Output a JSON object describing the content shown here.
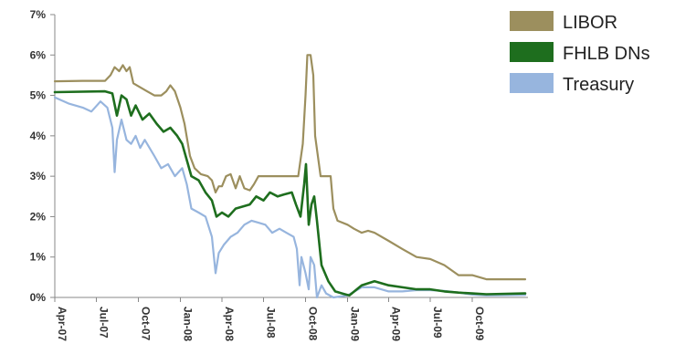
{
  "chart_data": {
    "type": "line",
    "title": "",
    "xlabel": "",
    "ylabel": "",
    "ylim": [
      0,
      7
    ],
    "xlim": [
      "2007-04-01",
      "2010-01-31"
    ],
    "y_ticks": [
      "0%",
      "1%",
      "2%",
      "3%",
      "4%",
      "5%",
      "6%",
      "7%"
    ],
    "x_ticks": [
      {
        "label": "Apr-07",
        "date": "2007-04-01"
      },
      {
        "label": "Jul-07",
        "date": "2007-07-01"
      },
      {
        "label": "Oct-07",
        "date": "2007-10-01"
      },
      {
        "label": "Jan-08",
        "date": "2008-01-01"
      },
      {
        "label": "Apr-08",
        "date": "2008-04-01"
      },
      {
        "label": "Jul-08",
        "date": "2008-07-01"
      },
      {
        "label": "Oct-08",
        "date": "2008-10-01"
      },
      {
        "label": "Jan-09",
        "date": "2009-01-01"
      },
      {
        "label": "Apr-09",
        "date": "2009-04-01"
      },
      {
        "label": "Jul-09",
        "date": "2009-07-01"
      },
      {
        "label": "Oct-09",
        "date": "2009-10-01"
      }
    ],
    "grid": false,
    "legend_position": "top-right",
    "series": [
      {
        "name": "LIBOR",
        "color": "#9c8f5e",
        "points": [
          [
            "2007-04-01",
            5.35
          ],
          [
            "2007-06-01",
            5.36
          ],
          [
            "2007-07-20",
            5.36
          ],
          [
            "2007-08-01",
            5.5
          ],
          [
            "2007-08-10",
            5.7
          ],
          [
            "2007-08-20",
            5.6
          ],
          [
            "2007-08-28",
            5.75
          ],
          [
            "2007-09-05",
            5.6
          ],
          [
            "2007-09-12",
            5.7
          ],
          [
            "2007-09-20",
            5.3
          ],
          [
            "2007-10-05",
            5.2
          ],
          [
            "2007-10-20",
            5.1
          ],
          [
            "2007-11-05",
            5.0
          ],
          [
            "2007-11-20",
            5.0
          ],
          [
            "2007-12-01",
            5.1
          ],
          [
            "2007-12-10",
            5.25
          ],
          [
            "2007-12-20",
            5.1
          ],
          [
            "2008-01-01",
            4.7
          ],
          [
            "2008-01-10",
            4.3
          ],
          [
            "2008-01-22",
            3.5
          ],
          [
            "2008-02-01",
            3.2
          ],
          [
            "2008-02-15",
            3.05
          ],
          [
            "2008-03-01",
            3.0
          ],
          [
            "2008-03-10",
            2.9
          ],
          [
            "2008-03-18",
            2.6
          ],
          [
            "2008-03-25",
            2.75
          ],
          [
            "2008-04-01",
            2.75
          ],
          [
            "2008-04-10",
            3.0
          ],
          [
            "2008-04-20",
            3.05
          ],
          [
            "2008-05-01",
            2.7
          ],
          [
            "2008-05-10",
            3.0
          ],
          [
            "2008-05-20",
            2.7
          ],
          [
            "2008-06-01",
            2.65
          ],
          [
            "2008-06-10",
            2.8
          ],
          [
            "2008-06-20",
            3.0
          ],
          [
            "2008-07-01",
            3.0
          ],
          [
            "2008-08-01",
            3.0
          ],
          [
            "2008-09-01",
            3.0
          ],
          [
            "2008-09-15",
            3.0
          ],
          [
            "2008-09-25",
            3.8
          ],
          [
            "2008-10-01",
            5.0
          ],
          [
            "2008-10-05",
            6.0
          ],
          [
            "2008-10-12",
            6.0
          ],
          [
            "2008-10-18",
            5.5
          ],
          [
            "2008-10-22",
            4.0
          ],
          [
            "2008-10-28",
            3.5
          ],
          [
            "2008-11-03",
            3.0
          ],
          [
            "2008-11-25",
            3.0
          ],
          [
            "2008-12-01",
            2.2
          ],
          [
            "2008-12-10",
            1.9
          ],
          [
            "2009-01-01",
            1.8
          ],
          [
            "2009-01-15",
            1.7
          ],
          [
            "2009-02-01",
            1.6
          ],
          [
            "2009-02-15",
            1.65
          ],
          [
            "2009-03-01",
            1.6
          ],
          [
            "2009-04-01",
            1.4
          ],
          [
            "2009-05-01",
            1.2
          ],
          [
            "2009-06-01",
            1.0
          ],
          [
            "2009-07-01",
            0.95
          ],
          [
            "2009-08-01",
            0.8
          ],
          [
            "2009-09-01",
            0.55
          ],
          [
            "2009-10-01",
            0.55
          ],
          [
            "2009-11-01",
            0.45
          ],
          [
            "2010-01-25",
            0.45
          ]
        ]
      },
      {
        "name": "FHLB DNs",
        "color": "#1e6e1e",
        "points": [
          [
            "2007-04-01",
            5.08
          ],
          [
            "2007-07-20",
            5.1
          ],
          [
            "2007-08-05",
            5.05
          ],
          [
            "2007-08-15",
            4.5
          ],
          [
            "2007-08-25",
            5.0
          ],
          [
            "2007-09-05",
            4.9
          ],
          [
            "2007-09-15",
            4.5
          ],
          [
            "2007-09-25",
            4.75
          ],
          [
            "2007-10-10",
            4.4
          ],
          [
            "2007-10-25",
            4.55
          ],
          [
            "2007-11-10",
            4.3
          ],
          [
            "2007-11-25",
            4.1
          ],
          [
            "2007-12-10",
            4.2
          ],
          [
            "2007-12-25",
            4.0
          ],
          [
            "2008-01-05",
            3.8
          ],
          [
            "2008-01-15",
            3.4
          ],
          [
            "2008-01-25",
            3.0
          ],
          [
            "2008-02-10",
            2.9
          ],
          [
            "2008-02-25",
            2.6
          ],
          [
            "2008-03-10",
            2.4
          ],
          [
            "2008-03-20",
            2.0
          ],
          [
            "2008-04-01",
            2.1
          ],
          [
            "2008-04-15",
            2.0
          ],
          [
            "2008-05-01",
            2.2
          ],
          [
            "2008-06-01",
            2.3
          ],
          [
            "2008-06-15",
            2.5
          ],
          [
            "2008-07-01",
            2.4
          ],
          [
            "2008-07-15",
            2.6
          ],
          [
            "2008-08-01",
            2.5
          ],
          [
            "2008-08-15",
            2.55
          ],
          [
            "2008-09-01",
            2.6
          ],
          [
            "2008-09-10",
            2.3
          ],
          [
            "2008-09-20",
            2.0
          ],
          [
            "2008-09-28",
            2.8
          ],
          [
            "2008-10-02",
            3.3
          ],
          [
            "2008-10-08",
            1.8
          ],
          [
            "2008-10-14",
            2.3
          ],
          [
            "2008-10-20",
            2.5
          ],
          [
            "2008-10-26",
            1.9
          ],
          [
            "2008-11-05",
            0.8
          ],
          [
            "2008-11-20",
            0.4
          ],
          [
            "2008-12-05",
            0.15
          ],
          [
            "2008-12-20",
            0.1
          ],
          [
            "2009-01-05",
            0.05
          ],
          [
            "2009-02-01",
            0.3
          ],
          [
            "2009-03-01",
            0.4
          ],
          [
            "2009-04-01",
            0.3
          ],
          [
            "2009-05-01",
            0.25
          ],
          [
            "2009-06-01",
            0.2
          ],
          [
            "2009-07-01",
            0.2
          ],
          [
            "2009-08-01",
            0.15
          ],
          [
            "2009-09-01",
            0.12
          ],
          [
            "2009-10-01",
            0.1
          ],
          [
            "2009-11-01",
            0.08
          ],
          [
            "2010-01-25",
            0.1
          ]
        ]
      },
      {
        "name": "Treasury",
        "color": "#97b5de",
        "points": [
          [
            "2007-04-01",
            4.95
          ],
          [
            "2007-05-01",
            4.8
          ],
          [
            "2007-06-01",
            4.7
          ],
          [
            "2007-06-20",
            4.6
          ],
          [
            "2007-07-10",
            4.85
          ],
          [
            "2007-07-25",
            4.7
          ],
          [
            "2007-08-05",
            4.2
          ],
          [
            "2007-08-10",
            3.1
          ],
          [
            "2007-08-15",
            3.9
          ],
          [
            "2007-08-25",
            4.4
          ],
          [
            "2007-09-05",
            3.9
          ],
          [
            "2007-09-15",
            3.8
          ],
          [
            "2007-09-25",
            4.0
          ],
          [
            "2007-10-05",
            3.7
          ],
          [
            "2007-10-15",
            3.9
          ],
          [
            "2007-11-05",
            3.5
          ],
          [
            "2007-11-20",
            3.2
          ],
          [
            "2007-12-05",
            3.3
          ],
          [
            "2007-12-20",
            3.0
          ],
          [
            "2008-01-05",
            3.2
          ],
          [
            "2008-01-15",
            2.8
          ],
          [
            "2008-01-25",
            2.2
          ],
          [
            "2008-02-10",
            2.1
          ],
          [
            "2008-02-25",
            2.0
          ],
          [
            "2008-03-10",
            1.5
          ],
          [
            "2008-03-18",
            0.6
          ],
          [
            "2008-03-25",
            1.1
          ],
          [
            "2008-04-05",
            1.3
          ],
          [
            "2008-04-20",
            1.5
          ],
          [
            "2008-05-05",
            1.6
          ],
          [
            "2008-05-20",
            1.8
          ],
          [
            "2008-06-05",
            1.9
          ],
          [
            "2008-06-20",
            1.85
          ],
          [
            "2008-07-05",
            1.8
          ],
          [
            "2008-07-20",
            1.6
          ],
          [
            "2008-08-05",
            1.7
          ],
          [
            "2008-08-20",
            1.6
          ],
          [
            "2008-09-05",
            1.5
          ],
          [
            "2008-09-12",
            1.2
          ],
          [
            "2008-09-18",
            0.3
          ],
          [
            "2008-09-22",
            1.0
          ],
          [
            "2008-10-01",
            0.6
          ],
          [
            "2008-10-08",
            0.2
          ],
          [
            "2008-10-12",
            1.0
          ],
          [
            "2008-10-20",
            0.8
          ],
          [
            "2008-10-26",
            0.0
          ],
          [
            "2008-11-05",
            0.3
          ],
          [
            "2008-11-15",
            0.1
          ],
          [
            "2008-12-01",
            0.0
          ],
          [
            "2009-01-01",
            0.05
          ],
          [
            "2009-02-01",
            0.25
          ],
          [
            "2009-03-01",
            0.25
          ],
          [
            "2009-04-01",
            0.15
          ],
          [
            "2009-05-01",
            0.15
          ],
          [
            "2009-06-01",
            0.18
          ],
          [
            "2009-07-01",
            0.18
          ],
          [
            "2009-08-01",
            0.16
          ],
          [
            "2009-09-01",
            0.12
          ],
          [
            "2009-10-01",
            0.07
          ],
          [
            "2009-11-01",
            0.05
          ],
          [
            "2010-01-25",
            0.06
          ]
        ]
      }
    ]
  }
}
